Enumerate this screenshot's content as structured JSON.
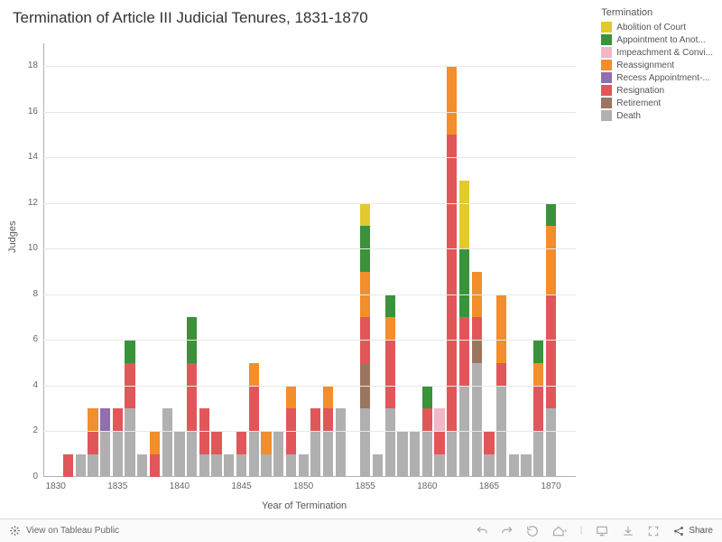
{
  "title": "Termination of Article III Judicial Tenures, 1831-1870",
  "legend_title": "Termination",
  "categories": [
    {
      "key": "abolition",
      "label": "Abolition of Court",
      "color": "#e1c92e"
    },
    {
      "key": "appointment",
      "label": "Appointment to Anot...",
      "color": "#3a923a"
    },
    {
      "key": "impeachment",
      "label": "Impeachment & Convi...",
      "color": "#f2b6c8"
    },
    {
      "key": "reassignment",
      "label": "Reassignment",
      "color": "#f28e2b"
    },
    {
      "key": "recess",
      "label": "Recess Appointment-...",
      "color": "#8e6fb0"
    },
    {
      "key": "resignation",
      "label": "Resignation",
      "color": "#e15759"
    },
    {
      "key": "retirement",
      "label": "Retirement",
      "color": "#9c755f"
    },
    {
      "key": "death",
      "label": "Death",
      "color": "#b0b0b0"
    }
  ],
  "stack_order": [
    "death",
    "retirement",
    "resignation",
    "recess",
    "reassignment",
    "impeachment",
    "appointment",
    "abolition"
  ],
  "y_axis_label": "Judges",
  "x_axis_label": "Year of Termination",
  "ylim": [
    0,
    19
  ],
  "ytick_step": 2,
  "xlim": [
    1829,
    1872
  ],
  "xticks": [
    1830,
    1835,
    1840,
    1845,
    1850,
    1855,
    1860,
    1865,
    1870
  ],
  "bar_width": 0.82,
  "plot_bg": "#ffffff",
  "grid_color": "#e8e8e8",
  "data": {
    "1831": {
      "resignation": 1
    },
    "1832": {
      "death": 1
    },
    "1833": {
      "death": 1,
      "resignation": 1,
      "reassignment": 1
    },
    "1834": {
      "death": 2,
      "recess": 1
    },
    "1835": {
      "death": 2,
      "resignation": 1
    },
    "1836": {
      "death": 3,
      "resignation": 2,
      "appointment": 1
    },
    "1837": {
      "death": 1
    },
    "1838": {
      "resignation": 1,
      "reassignment": 1
    },
    "1839": {
      "death": 3
    },
    "1840": {
      "death": 2
    },
    "1841": {
      "death": 2,
      "resignation": 3,
      "appointment": 2
    },
    "1842": {
      "death": 1,
      "resignation": 2
    },
    "1843": {
      "death": 1,
      "resignation": 1
    },
    "1844": {
      "death": 1
    },
    "1845": {
      "death": 1,
      "resignation": 1
    },
    "1846": {
      "death": 2,
      "resignation": 2,
      "reassignment": 1
    },
    "1847": {
      "death": 1,
      "reassignment": 1
    },
    "1848": {
      "death": 2
    },
    "1849": {
      "death": 1,
      "resignation": 2,
      "reassignment": 1
    },
    "1850": {
      "death": 1
    },
    "1851": {
      "death": 2,
      "resignation": 1
    },
    "1852": {
      "death": 2,
      "resignation": 1,
      "reassignment": 1
    },
    "1853": {
      "death": 3
    },
    "1855": {
      "death": 3,
      "retirement": 2,
      "resignation": 2,
      "reassignment": 2,
      "appointment": 2,
      "abolition": 1
    },
    "1856": {
      "death": 1
    },
    "1857": {
      "death": 3,
      "resignation": 3,
      "reassignment": 1,
      "appointment": 1
    },
    "1858": {
      "death": 2
    },
    "1859": {
      "death": 2
    },
    "1860": {
      "death": 2,
      "resignation": 1,
      "appointment": 1
    },
    "1861": {
      "death": 1,
      "impeachment": 1,
      "resignation": 1
    },
    "1862": {
      "death": 2,
      "resignation": 13,
      "reassignment": 3
    },
    "1863": {
      "death": 4,
      "resignation": 3,
      "appointment": 3,
      "abolition": 3
    },
    "1864": {
      "death": 5,
      "retirement": 1,
      "resignation": 1,
      "reassignment": 2
    },
    "1865": {
      "death": 1,
      "resignation": 1
    },
    "1866": {
      "death": 4,
      "resignation": 1,
      "reassignment": 3
    },
    "1867": {
      "death": 1
    },
    "1868": {
      "death": 1
    },
    "1869": {
      "death": 2,
      "resignation": 2,
      "reassignment": 1,
      "appointment": 1
    },
    "1870": {
      "death": 3,
      "resignation": 5,
      "reassignment": 3,
      "appointment": 1
    }
  },
  "footer": {
    "view_on": "View on Tableau Public",
    "share": "Share"
  }
}
